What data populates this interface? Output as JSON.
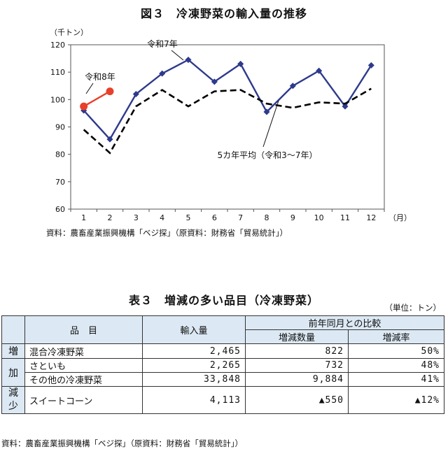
{
  "figure": {
    "title": "図３　冷凍野菜の輸入量の推移",
    "source": "資料：農畜産業振興機構「ベジ探」（原資料：財務省「貿易統計」）"
  },
  "chart_data": {
    "type": "line",
    "title": "図３　冷凍野菜の輸入量の推移",
    "ylabel": "（千トン）",
    "xlabel": "（月）",
    "x": [
      1,
      2,
      3,
      4,
      5,
      6,
      7,
      8,
      9,
      10,
      11,
      12
    ],
    "ylim": [
      60,
      120
    ],
    "yticks": [
      60,
      70,
      80,
      90,
      100,
      110,
      120
    ],
    "grid": false,
    "series": [
      {
        "name": "令和7年",
        "color": "#2e3a8c",
        "style": "solid-marker-diamond",
        "values": [
          96,
          85.5,
          102,
          109.5,
          114.5,
          106.5,
          113,
          95.5,
          105,
          110.5,
          97.5,
          112.5
        ]
      },
      {
        "name": "令和8年",
        "color": "#e8402a",
        "style": "solid-marker-circle",
        "values": [
          97.5,
          103,
          null,
          null,
          null,
          null,
          null,
          null,
          null,
          null,
          null,
          null
        ]
      },
      {
        "name": "5カ年平均（令和3～7年）",
        "color": "#000000",
        "style": "dashed",
        "values": [
          89,
          80.5,
          97.5,
          103.5,
          97.5,
          103,
          103.5,
          98.5,
          97,
          99,
          98.5,
          104
        ]
      }
    ]
  },
  "table": {
    "title": "表３　増減の多い品目（冷凍野菜）",
    "unit": "（単位：トン）",
    "headers": {
      "item": "品　目",
      "import": "輸入量",
      "compare": "前年同月との比較",
      "change": "増減数量",
      "rate": "増減率"
    },
    "side_increase": [
      "増",
      "加"
    ],
    "side_decrease": [
      "減",
      "少"
    ],
    "rows": [
      {
        "item": "混合冷凍野菜",
        "import": "2,465",
        "change": "822",
        "rate": "50%"
      },
      {
        "item": "さといも",
        "import": "2,265",
        "change": "732",
        "rate": "48%"
      },
      {
        "item": "その他の冷凍野菜",
        "import": "33,848",
        "change": "9,884",
        "rate": "41%"
      },
      {
        "item": "スイートコーン",
        "import": "4,113",
        "change": "▲550",
        "rate": "▲12%"
      }
    ],
    "source": "資料：農畜産業振興機構「ベジ探」（原資料：財務省「貿易統計」）"
  }
}
